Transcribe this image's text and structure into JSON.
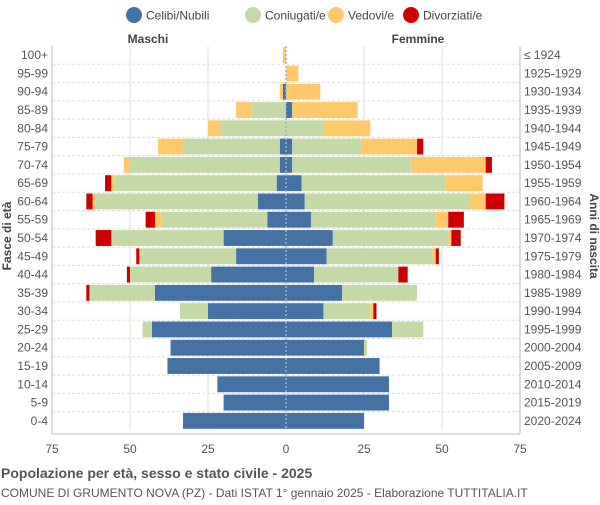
{
  "chart_data": {
    "type": "bar",
    "orientation": "horizontal-pyramid",
    "title": "Popolazione per età, sesso e stato civile - 2025",
    "subtitle": "COMUNE DI GRUMENTO NOVA (PZ) - Dati ISTAT 1° gennaio 2025 - Elaborazione TUTTITALIA.IT",
    "left_header": "Maschi",
    "right_header": "Femmine",
    "ylabel_left": "Fasce di età",
    "ylabel_right": "Anni di nascita",
    "xlim": [
      -75,
      75
    ],
    "xticks": [
      "75",
      "50",
      "25",
      "0",
      "25",
      "50",
      "75"
    ],
    "xtick_values": [
      -75,
      -50,
      -25,
      0,
      25,
      50,
      75
    ],
    "grid": true,
    "legend_position": "top",
    "legend": [
      {
        "name": "Celibi/Nubili",
        "color": "#4472a4"
      },
      {
        "name": "Coniugati/e",
        "color": "#c5d9a6"
      },
      {
        "name": "Vedovi/e",
        "color": "#fec96a"
      },
      {
        "name": "Divorziati/e",
        "color": "#cc0000"
      }
    ],
    "age_groups": [
      "100+",
      "95-99",
      "90-94",
      "85-89",
      "80-84",
      "75-79",
      "70-74",
      "65-69",
      "60-64",
      "55-59",
      "50-54",
      "45-49",
      "40-44",
      "35-39",
      "30-34",
      "25-29",
      "20-24",
      "15-19",
      "10-14",
      "5-9",
      "0-4"
    ],
    "birth_years": [
      "≤ 1924",
      "1925-1929",
      "1930-1934",
      "1935-1939",
      "1940-1944",
      "1945-1949",
      "1950-1954",
      "1955-1959",
      "1960-1964",
      "1965-1969",
      "1970-1974",
      "1975-1979",
      "1980-1984",
      "1985-1989",
      "1990-1994",
      "1995-1999",
      "2000-2004",
      "2005-2009",
      "2010-2014",
      "2015-2019",
      "2020-2024"
    ],
    "males": {
      "celibi": [
        0,
        0,
        1,
        0,
        0,
        2,
        2,
        3,
        9,
        6,
        20,
        16,
        24,
        42,
        25,
        43,
        37,
        38,
        22,
        20,
        33
      ],
      "coniugati": [
        0,
        0,
        0,
        11,
        21,
        31,
        48,
        52,
        52,
        34,
        36,
        31,
        26,
        21,
        9,
        3,
        0,
        0,
        0,
        0,
        0
      ],
      "vedovi": [
        1,
        0,
        1,
        5,
        4,
        8,
        2,
        1,
        1,
        2,
        0,
        0,
        0,
        0,
        0,
        0,
        0,
        0,
        0,
        0,
        0
      ],
      "divorziati": [
        0,
        0,
        0,
        0,
        0,
        0,
        0,
        2,
        2,
        3,
        5,
        1,
        1,
        1,
        0,
        0,
        0,
        0,
        0,
        0,
        0
      ]
    },
    "females": {
      "nubili": [
        0,
        0,
        0,
        2,
        0,
        2,
        2,
        5,
        6,
        8,
        15,
        13,
        9,
        18,
        12,
        34,
        25,
        30,
        33,
        33,
        25
      ],
      "coniugate": [
        0,
        0,
        0,
        0,
        12,
        22,
        38,
        46,
        53,
        40,
        37,
        34,
        27,
        24,
        15,
        10,
        1,
        0,
        0,
        0,
        0
      ],
      "vedove": [
        0,
        4,
        11,
        21,
        15,
        18,
        24,
        12,
        5,
        4,
        1,
        1,
        0,
        0,
        1,
        0,
        0,
        0,
        0,
        0,
        0
      ],
      "divorziate": [
        0,
        0,
        0,
        0,
        0,
        2,
        2,
        0,
        6,
        5,
        3,
        1,
        3,
        0,
        1,
        0,
        0,
        0,
        0,
        0,
        0
      ]
    }
  }
}
